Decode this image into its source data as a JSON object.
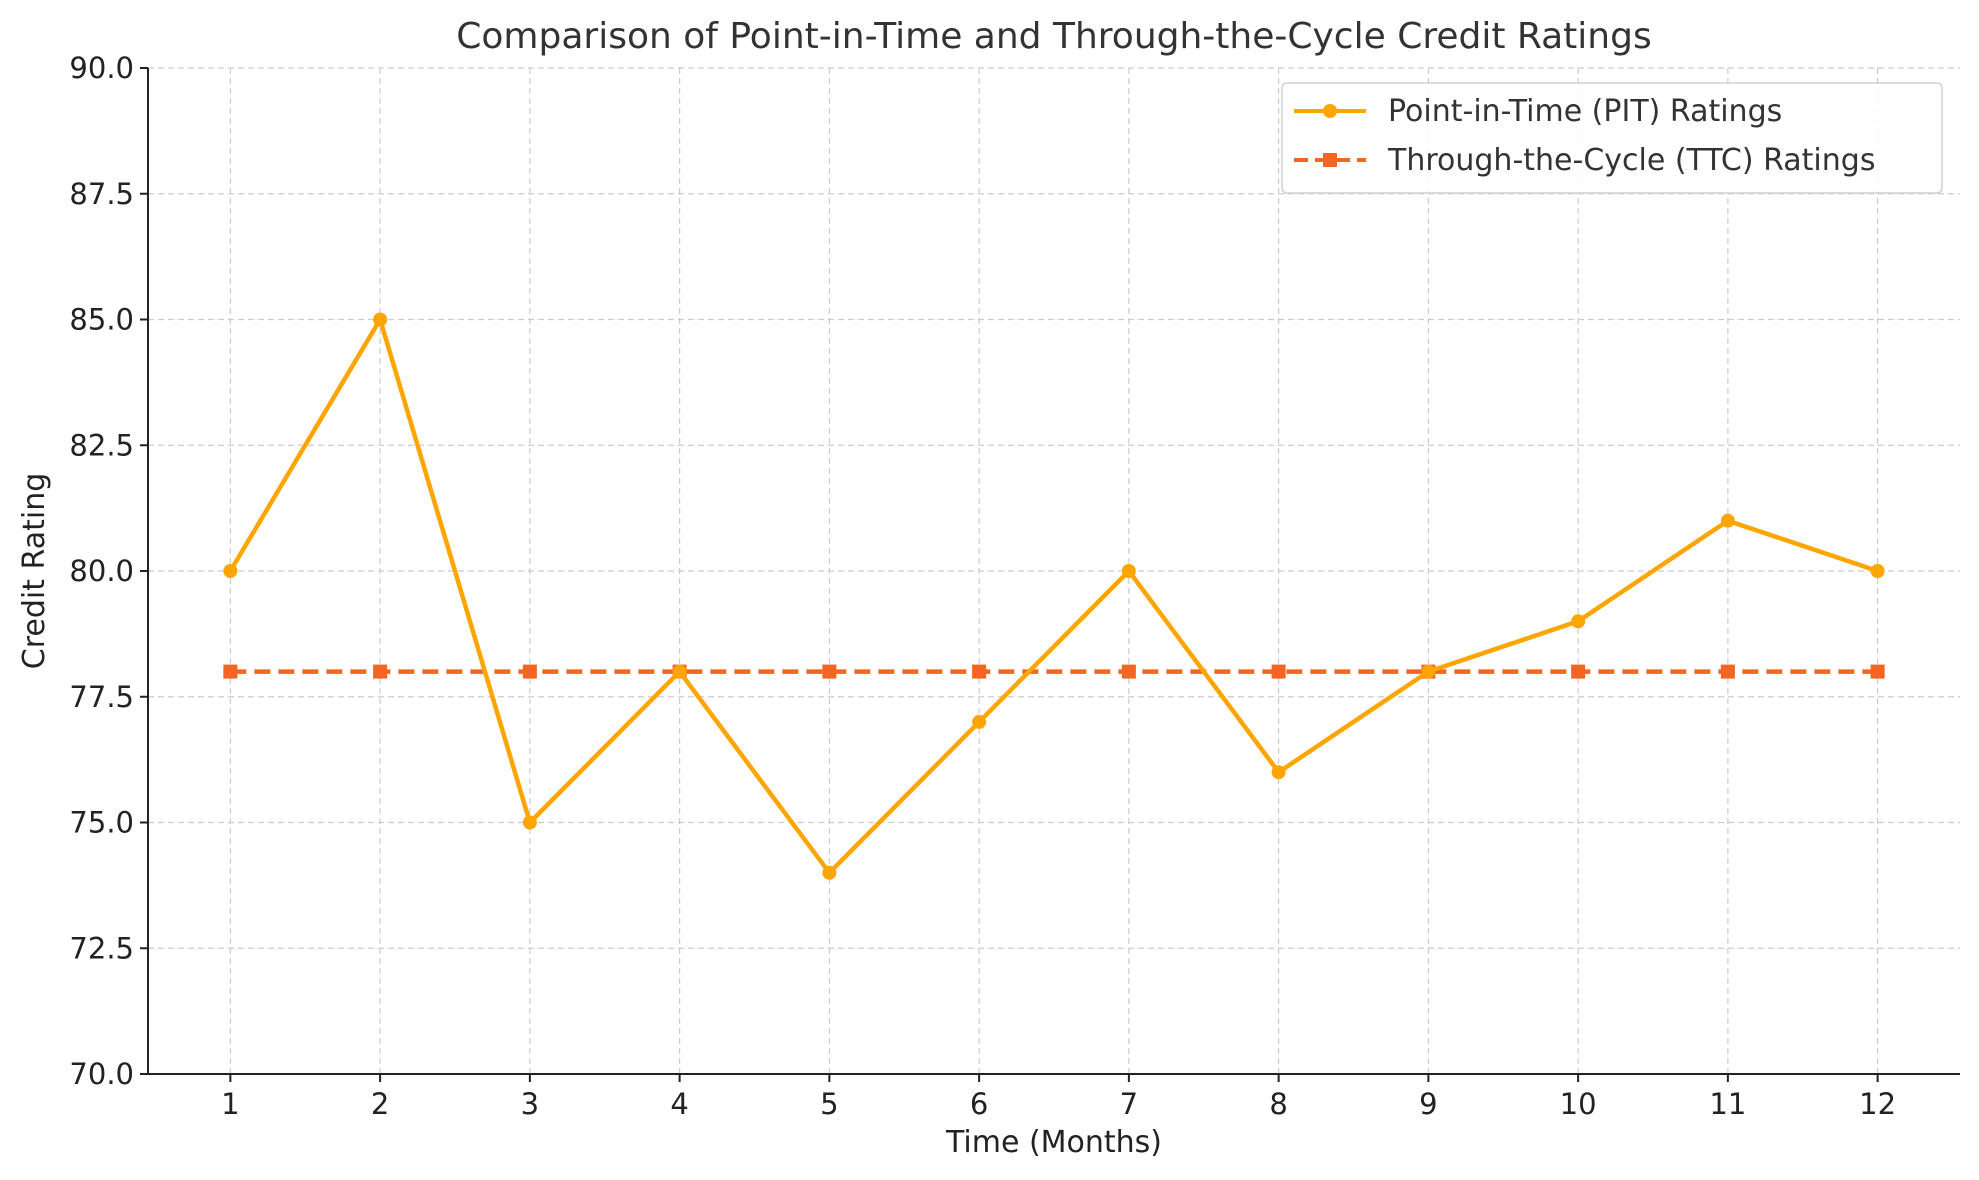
{
  "chart_data": {
    "type": "line",
    "title": "Comparison of Point-in-Time and Through-the-Cycle Credit Ratings",
    "xlabel": "Time (Months)",
    "ylabel": "Credit Rating",
    "x": [
      1,
      2,
      3,
      4,
      5,
      6,
      7,
      8,
      9,
      10,
      11,
      12
    ],
    "x_tick_labels": [
      "1",
      "2",
      "3",
      "4",
      "5",
      "6",
      "7",
      "8",
      "9",
      "10",
      "11",
      "12"
    ],
    "xlim": [
      0.45,
      12.55
    ],
    "ylim": [
      70.0,
      90.0
    ],
    "y_ticks": [
      70.0,
      72.5,
      75.0,
      77.5,
      80.0,
      82.5,
      85.0,
      87.5,
      90.0
    ],
    "y_tick_labels": [
      "70.0",
      "72.5",
      "75.0",
      "77.5",
      "80.0",
      "82.5",
      "85.0",
      "87.5",
      "90.0"
    ],
    "grid": true,
    "legend_position": "top-right",
    "series": [
      {
        "name": "Point-in-Time (PIT) Ratings",
        "values": [
          80,
          85,
          75,
          78,
          74,
          77,
          80,
          76,
          78,
          79,
          81,
          80
        ],
        "color": "#FFA500",
        "marker": "circle",
        "line_style": "solid"
      },
      {
        "name": "Through-the-Cycle (TTC) Ratings",
        "values": [
          78,
          78,
          78,
          78,
          78,
          78,
          78,
          78,
          78,
          78,
          78,
          78
        ],
        "color": "#F26522",
        "marker": "square",
        "line_style": "dashed"
      }
    ]
  }
}
